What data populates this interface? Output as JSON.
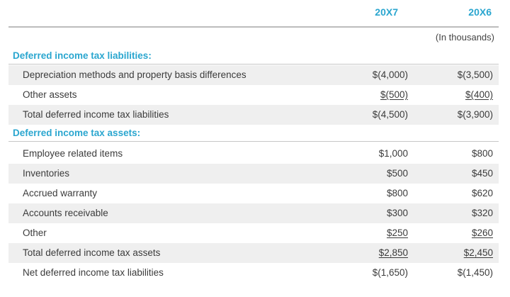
{
  "columns": {
    "year1": "20X7",
    "year2": "20X6",
    "units": "(In thousands)"
  },
  "liabilities": {
    "heading": "Deferred income tax liabilities:",
    "rows": [
      {
        "label": "Depreciation methods and property basis differences",
        "v1": "$(4,000)",
        "v2": "$(3,500)"
      },
      {
        "label": "Other assets",
        "v1": "$(500)",
        "v2": "$(400)"
      },
      {
        "label": "Total deferred income tax liabilities",
        "v1": "$(4,500)",
        "v2": "$(3,900)"
      }
    ]
  },
  "assets": {
    "heading": "Deferred income tax assets:",
    "rows": [
      {
        "label": "Employee related items",
        "v1": "$1,000",
        "v2": "$800"
      },
      {
        "label": "Inventories",
        "v1": "$500",
        "v2": "$450"
      },
      {
        "label": "Accrued warranty",
        "v1": "$800",
        "v2": "$620"
      },
      {
        "label": "Accounts receivable",
        "v1": "$300",
        "v2": "$320"
      },
      {
        "label": "Other",
        "v1": "$250",
        "v2": "$260"
      },
      {
        "label": "Total deferred income tax assets",
        "v1": "$2,850",
        "v2": "$2,450"
      },
      {
        "label": "Net deferred income tax liabilities",
        "v1": "$(1,650)",
        "v2": "$(1,450)"
      }
    ]
  }
}
